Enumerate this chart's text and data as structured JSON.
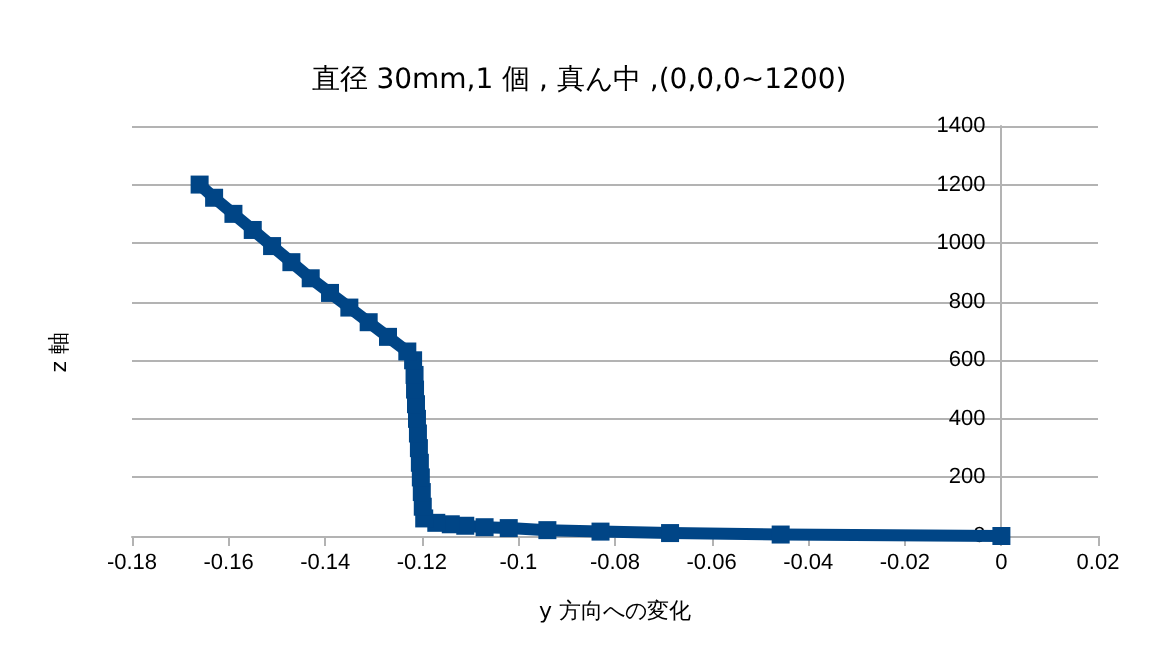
{
  "chart_data": {
    "type": "line",
    "title": "直径 30mm,1 個 , 真ん中 ,(0,0,0~1200)",
    "xlabel": "y 方向への変化",
    "ylabel": "z 軸",
    "series": [
      {
        "color": "#004586",
        "x": [
          0,
          -0.0457,
          -0.0686,
          -0.083,
          -0.094,
          -0.102,
          -0.107,
          -0.111,
          -0.114,
          -0.117,
          -0.1195,
          -0.1198,
          -0.12,
          -0.1202,
          -0.1204,
          -0.1206,
          -0.1208,
          -0.121,
          -0.1212,
          -0.1214,
          -0.1215,
          -0.1218,
          -0.123,
          -0.127,
          -0.131,
          -0.135,
          -0.139,
          -0.143,
          -0.147,
          -0.151,
          -0.155,
          -0.159,
          -0.163,
          -0.166
        ],
        "values": [
          0,
          5,
          10,
          15,
          20,
          27,
          30,
          35,
          40,
          45,
          60,
          100,
          150,
          200,
          250,
          300,
          350,
          400,
          450,
          500,
          550,
          600,
          630,
          680,
          730,
          780,
          830,
          880,
          935,
          990,
          1045,
          1100,
          1155,
          1200
        ]
      }
    ],
    "xlim": [
      -0.18,
      0.02
    ],
    "xticks": [
      {
        "value": -0.18,
        "label": "-0.18"
      },
      {
        "value": -0.16,
        "label": "-0.16"
      },
      {
        "value": -0.14,
        "label": "-0.14"
      },
      {
        "value": -0.12,
        "label": "-0.12"
      },
      {
        "value": -0.1,
        "label": "-0.1"
      },
      {
        "value": -0.08,
        "label": "-0.08"
      },
      {
        "value": -0.06,
        "label": "-0.06"
      },
      {
        "value": -0.04,
        "label": "-0.04"
      },
      {
        "value": -0.02,
        "label": "-0.02"
      },
      {
        "value": 0,
        "label": "0"
      },
      {
        "value": 0.02,
        "label": "0.02"
      }
    ],
    "ylim": [
      0,
      1400
    ],
    "yticks": [
      0,
      200,
      400,
      600,
      800,
      1000,
      1200,
      1400
    ],
    "grid": "y",
    "marker": "square",
    "line_style": "solid"
  }
}
